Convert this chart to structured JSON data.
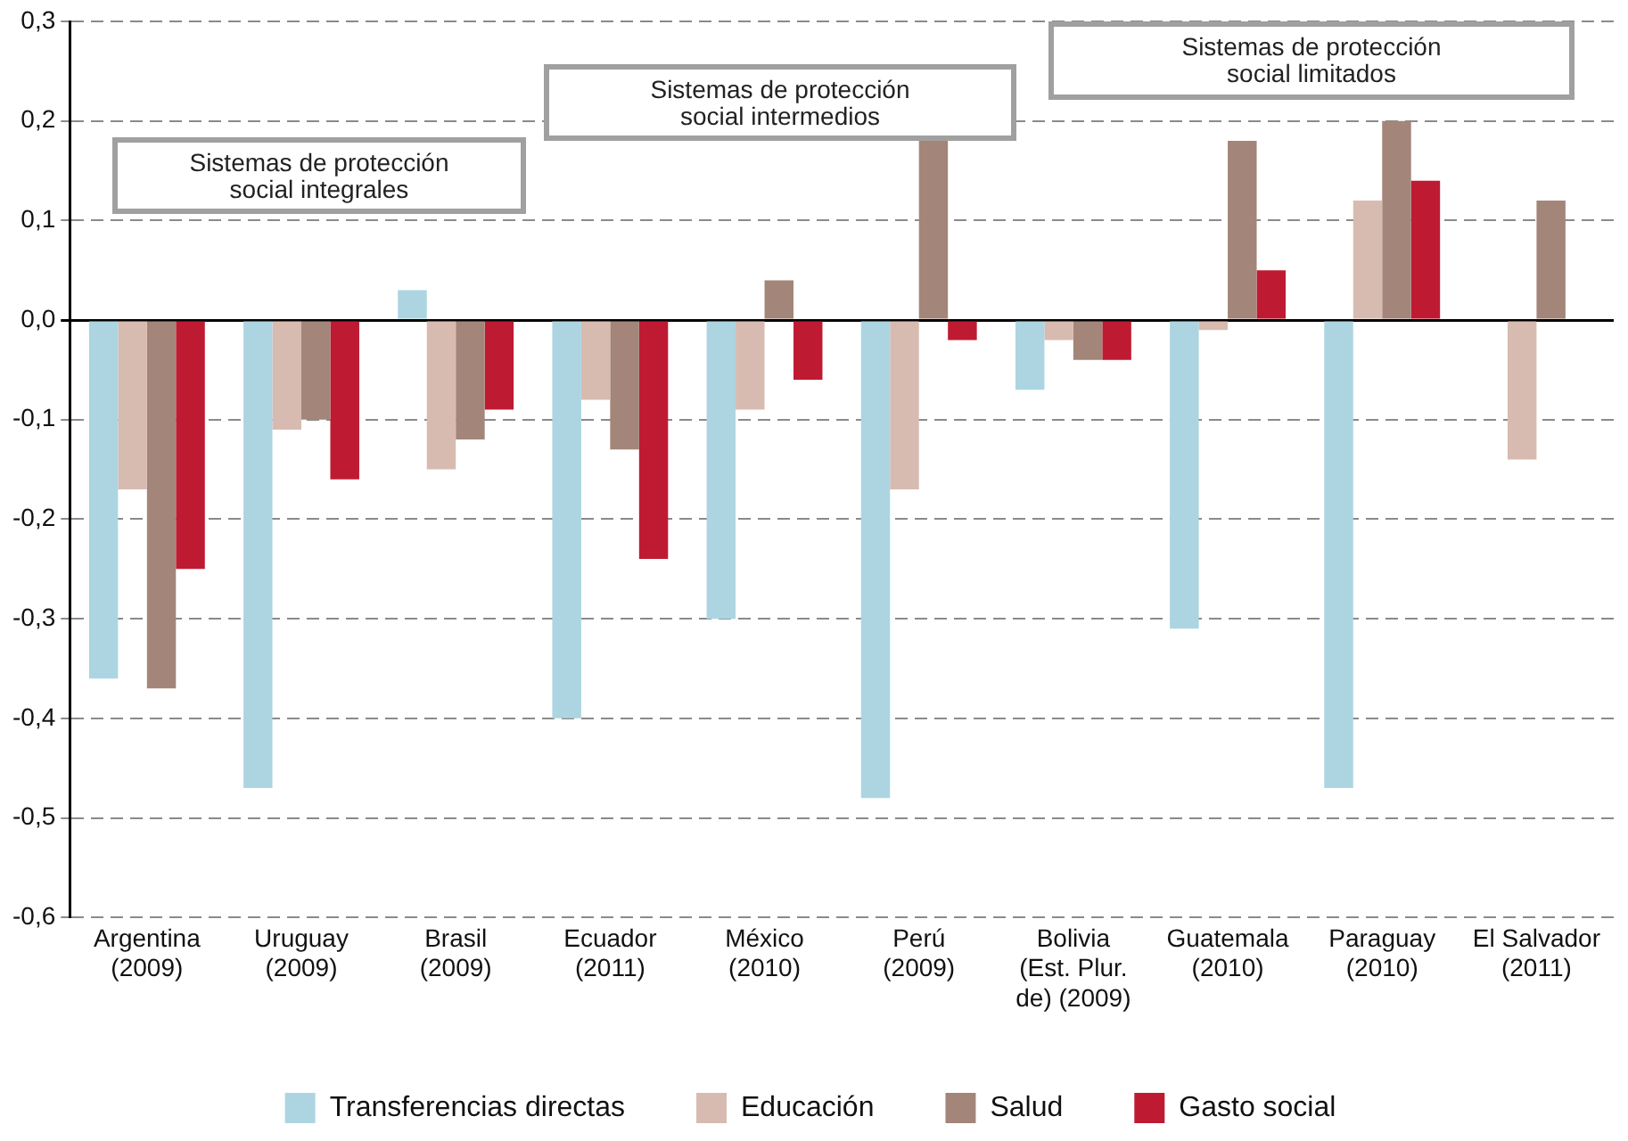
{
  "chart_data": {
    "type": "bar",
    "categories": [
      "Argentina (2009)",
      "Uruguay (2009)",
      "Brasil (2009)",
      "Ecuador (2011)",
      "México (2010)",
      "Perú (2009)",
      "Bolivia (Est. Plur. de) (2009)",
      "Guatemala (2010)",
      "Paraguay (2010)",
      "El Salvador (2011)"
    ],
    "series": [
      {
        "name": "Transferencias directas",
        "color": "#acd5e1",
        "values": [
          -0.36,
          -0.47,
          0.03,
          -0.4,
          -0.3,
          -0.48,
          -0.07,
          -0.31,
          -0.47,
          null
        ]
      },
      {
        "name": "Educación",
        "color": "#d8bbb0",
        "values": [
          -0.17,
          -0.11,
          -0.15,
          -0.08,
          -0.09,
          -0.17,
          -0.02,
          -0.01,
          0.12,
          -0.14
        ]
      },
      {
        "name": "Salud",
        "color": "#a38679",
        "values": [
          -0.37,
          -0.1,
          -0.12,
          -0.13,
          0.04,
          0.18,
          -0.04,
          0.18,
          0.2,
          0.12
        ]
      },
      {
        "name": "Gasto social",
        "color": "#be1b33",
        "values": [
          -0.25,
          -0.16,
          -0.09,
          -0.24,
          -0.06,
          -0.02,
          -0.04,
          0.05,
          0.14,
          null
        ]
      }
    ],
    "ylim": [
      -0.6,
      0.3
    ],
    "yticks": [
      {
        "value": -0.6,
        "label": "-0,6"
      },
      {
        "value": -0.5,
        "label": "-0,5"
      },
      {
        "value": -0.4,
        "label": "-0,4"
      },
      {
        "value": -0.3,
        "label": "-0,3"
      },
      {
        "value": -0.2,
        "label": "-0,2"
      },
      {
        "value": -0.1,
        "label": "-0,1"
      },
      {
        "value": 0,
        "label": "0,0"
      },
      {
        "value": 0.1,
        "label": "0,1"
      },
      {
        "value": 0.2,
        "label": "0,2"
      },
      {
        "value": 0.3,
        "label": "0,3"
      }
    ],
    "grid": "y",
    "legend": "bottom",
    "annotations": [
      "Sistemas de protección social integrales",
      "Sistemas de protección social intermedios",
      "Sistemas de protección social limitados"
    ]
  }
}
